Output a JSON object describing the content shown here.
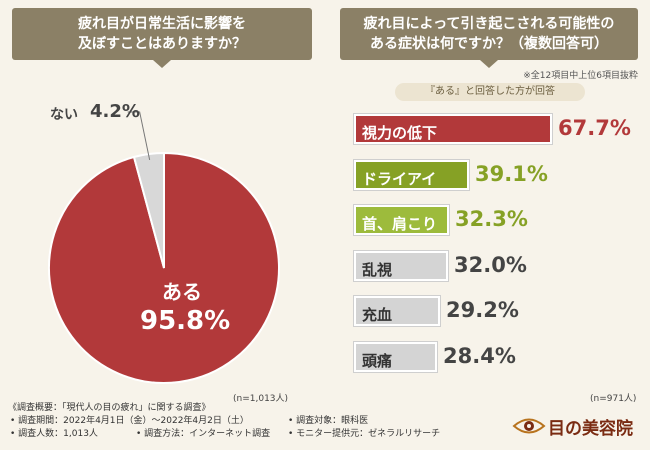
{
  "left_question": {
    "line1": "疲れ目が日常生活に影響を",
    "line2": "及ぼすことはありますか？"
  },
  "right_question": {
    "line1": "疲れ目によって引き起こされる可能性の",
    "line2": "ある症状は何ですか？（複数回答可）"
  },
  "note_top": "※全12項目中上位6項目抜粋",
  "answer_pill": "『ある』と回答した方が回答",
  "n_left": "(n=1,013人)",
  "n_right": "(n=971人)",
  "colors": {
    "aru": "#b2393a",
    "nai": "#d8d8d8",
    "green": "#86a125",
    "light_green": "#9dbb3c",
    "gray": "#d4d4d4",
    "banner": "#8b8066"
  },
  "chart_data": [
    {
      "type": "pie",
      "title": "疲れ目が日常生活に影響を及ぼすことはありますか？",
      "slices": [
        {
          "label": "ある",
          "value": 95.8,
          "display": "95.8%"
        },
        {
          "label": "ない",
          "value": 4.2,
          "display": "4.2%"
        }
      ],
      "n": "(n=1,013人)"
    },
    {
      "type": "bar",
      "title": "疲れ目によって引き起こされる可能性のある症状は何ですか？（複数回答可）",
      "categories": [
        "視力の低下",
        "ドライアイ",
        "首、肩こり",
        "乱視",
        "充血",
        "頭痛"
      ],
      "values": [
        67.7,
        39.1,
        32.3,
        32.0,
        29.2,
        28.4
      ],
      "displays": [
        "67.7%",
        "39.1%",
        "32.3%",
        "32.0%",
        "29.2%",
        "28.4%"
      ],
      "n": "(n=971人)"
    }
  ],
  "footer": {
    "overview": "《調査概要：「現代人の目の疲れ」に関する調査》",
    "period": "• 調査期間：2022年4月1日（金）～2022年4月2日（土）",
    "people": "• 調査人数：1,013人",
    "method": "• 調査方法：インターネット調査",
    "target": "• 調査対象：眼科医",
    "provider": "• モニター提供元：ゼネラルリサーチ"
  },
  "logo": {
    "text": "目の美容院"
  }
}
